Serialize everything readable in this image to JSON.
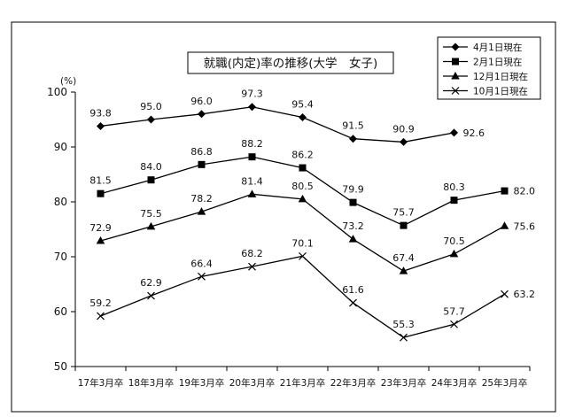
{
  "chart_data": {
    "type": "line",
    "title": "就職(内定)率の推移(大学　女子)",
    "ylabel": "(%)",
    "xlabel": "",
    "ylim": [
      50,
      100
    ],
    "yticks": [
      50,
      60,
      70,
      80,
      90,
      100
    ],
    "grid": false,
    "legend_position": "top-right",
    "categories": [
      "17年3月卒",
      "18年3月卒",
      "19年3月卒",
      "20年3月卒",
      "21年3月卒",
      "22年3月卒",
      "23年3月卒",
      "24年3月卒",
      "25年3月卒"
    ],
    "series": [
      {
        "name": "4月1日現在",
        "marker": "diamond",
        "values": [
          93.8,
          95.0,
          96.0,
          97.3,
          95.4,
          91.5,
          90.9,
          92.6,
          null
        ],
        "labels": [
          "93.8",
          "95.0",
          "96.0",
          "97.3",
          "95.4",
          "91.5",
          "90.9",
          "92.6",
          null
        ]
      },
      {
        "name": "2月1日現在",
        "marker": "square",
        "values": [
          81.5,
          84.0,
          86.8,
          88.2,
          86.2,
          79.9,
          75.7,
          80.3,
          82.0
        ],
        "labels": [
          "81.5",
          "84.0",
          "86.8",
          "88.2",
          "86.2",
          "79.9",
          "75.7",
          "80.3",
          "82.0"
        ]
      },
      {
        "name": "12月1日現在",
        "marker": "triangle",
        "values": [
          72.9,
          75.5,
          78.2,
          81.4,
          80.5,
          73.2,
          67.4,
          70.5,
          75.6
        ],
        "labels": [
          "72.9",
          "75.5",
          "78.2",
          "81.4",
          "80.5",
          "73.2",
          "67.4",
          "70.5",
          "75.6"
        ]
      },
      {
        "name": "10月1日現在",
        "marker": "x",
        "values": [
          59.2,
          62.9,
          66.4,
          68.2,
          70.1,
          61.6,
          55.3,
          57.7,
          63.2
        ],
        "labels": [
          "59.2",
          "62.9",
          "66.4",
          "68.2",
          "70.1",
          "61.6",
          "55.3",
          "57.7",
          "63.2"
        ]
      }
    ],
    "colors": {
      "line": "#000000",
      "background": "#ffffff",
      "frame": "#000000"
    }
  }
}
